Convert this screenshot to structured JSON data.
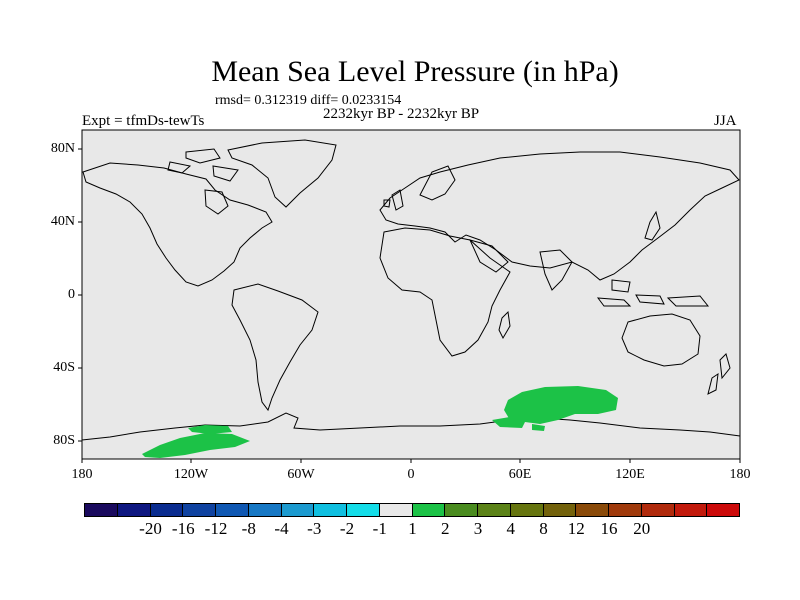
{
  "title": "Mean Sea Level Pressure (in hPa)",
  "stats": "rmsd= 0.312319 diff= 0.0233154",
  "period": "2232kyr BP - 2232kyr BP",
  "experiment": "Expt = tfmDs-tewTs",
  "season": "JJA",
  "lat_labels": [
    "80N",
    "40N",
    "0",
    "40S",
    "80S"
  ],
  "lon_labels": [
    "180",
    "120W",
    "60W",
    "0",
    "60E",
    "120E",
    "180"
  ],
  "colorbar": {
    "colors": [
      "#1a0a5e",
      "#0e1780",
      "#0a2c8f",
      "#0f42a0",
      "#1058b3",
      "#1778c4",
      "#1b9acf",
      "#10bfe0",
      "#14dde8",
      "#e8e8e8",
      "#1cc247",
      "#4a8c1f",
      "#5b8217",
      "#66750f",
      "#73620b",
      "#8a4a09",
      "#a03a0b",
      "#b02a0c",
      "#c21a0c",
      "#cc0a0a"
    ],
    "labels": [
      "-20",
      "-16",
      "-12",
      "-8",
      "-4",
      "-3",
      "-2",
      "-1",
      "1",
      "2",
      "3",
      "4",
      "8",
      "12",
      "16",
      "20"
    ]
  },
  "colors": {
    "ocean": "#e8e8e8",
    "anomaly_green": "#1cc247",
    "coast": "#000000"
  }
}
